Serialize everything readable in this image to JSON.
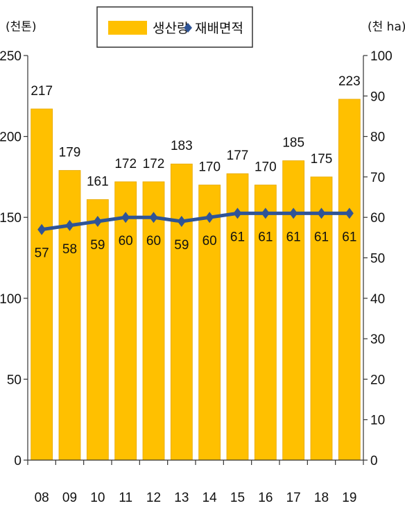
{
  "chart_data": {
    "type": "bar+line",
    "categories": [
      "08",
      "09",
      "10",
      "11",
      "12",
      "13",
      "14",
      "15",
      "16",
      "17",
      "18",
      "19"
    ],
    "series": [
      {
        "name": "생산량",
        "type": "bar",
        "axis": "left",
        "values": [
          217,
          179,
          161,
          172,
          172,
          183,
          170,
          177,
          170,
          185,
          175,
          223
        ],
        "color": "#FFC000"
      },
      {
        "name": "재배면적",
        "type": "line",
        "axis": "right",
        "values": [
          57,
          58,
          59,
          60,
          60,
          59,
          60,
          61,
          61,
          61,
          61,
          61
        ],
        "color": "#2F5496"
      }
    ],
    "y_left": {
      "unit_label": "(천톤)",
      "ylim": [
        0,
        250
      ],
      "ticks": [
        "0",
        "50",
        "100",
        "150",
        "200",
        "250"
      ]
    },
    "y_right": {
      "unit_label": "(천 ha)",
      "ylim": [
        0,
        100
      ],
      "ticks": [
        "0",
        "10",
        "20",
        "30",
        "40",
        "50",
        "60",
        "70",
        "80",
        "90",
        "100"
      ]
    },
    "legend_placement": "top-center",
    "grid": false
  }
}
